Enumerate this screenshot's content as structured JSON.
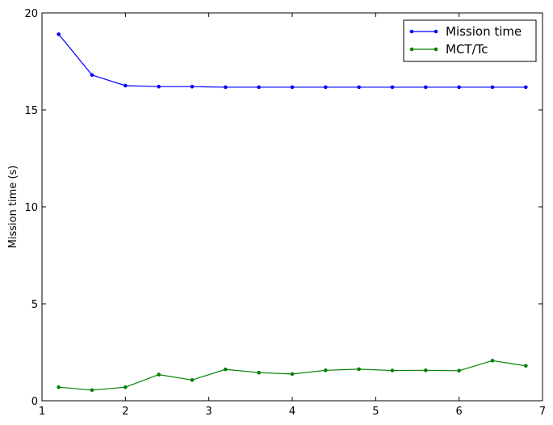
{
  "chart_data": {
    "type": "line",
    "title": "",
    "xlabel": "",
    "ylabel": "Mission time (s)",
    "xlim": [
      1,
      7
    ],
    "ylim": [
      0,
      20
    ],
    "xticks": [
      "1",
      "2",
      "3",
      "4",
      "5",
      "6",
      "7"
    ],
    "yticks": [
      "0",
      "5",
      "10",
      "15",
      "20"
    ],
    "grid": false,
    "legend_position": "top-right",
    "x": [
      1.2,
      1.6,
      2.0,
      2.4,
      2.8,
      3.2,
      3.6,
      4.0,
      4.4,
      4.8,
      5.2,
      5.6,
      6.0,
      6.4,
      6.8
    ],
    "series": [
      {
        "name": "Mission time",
        "color": "#0000ff",
        "values": [
          18.9,
          16.8,
          16.25,
          16.2,
          16.2,
          16.17,
          16.17,
          16.17,
          16.17,
          16.17,
          16.17,
          16.17,
          16.17,
          16.17,
          16.17
        ]
      },
      {
        "name": "MCT/Tc",
        "color": "#008000",
        "values": [
          0.7,
          0.55,
          0.7,
          1.35,
          1.07,
          1.62,
          1.45,
          1.38,
          1.57,
          1.63,
          1.56,
          1.57,
          1.55,
          2.07,
          1.8
        ]
      }
    ]
  }
}
